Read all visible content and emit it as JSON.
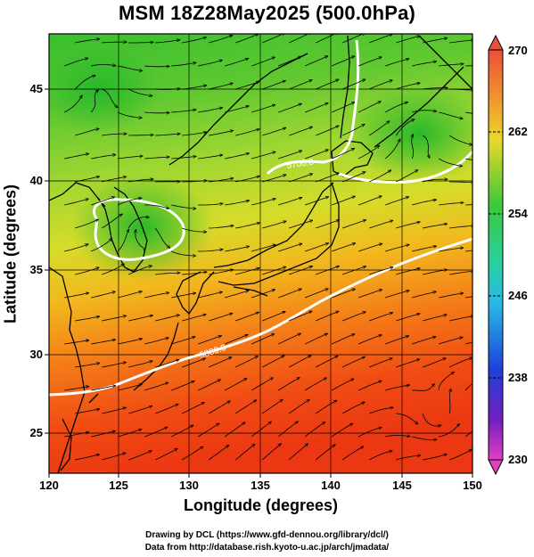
{
  "title": "MSM 18Z28May2025 (500.0hPa)",
  "x_axis": {
    "label": "Longitude (degrees)",
    "ticks": [
      "120",
      "125",
      "130",
      "135",
      "140",
      "145",
      "150"
    ]
  },
  "y_axis": {
    "label": "Latitude  (degrees)",
    "ticks": [
      "25",
      "30",
      "35",
      "40",
      "45"
    ]
  },
  "colorbar": {
    "ticks": [
      "270",
      "262",
      "254",
      "246",
      "238",
      "230"
    ],
    "min": 230,
    "max": 270
  },
  "contour_labels": [
    "5700.0",
    "5880.0"
  ],
  "footer": {
    "line1": "Drawing by DCL (https://www.gfd-dennou.org/library/dcl/)",
    "line2": "Data from http://database.rish.kyoto-u.ac.jp/arch/jmadata/"
  },
  "colors": {
    "warm": "#f03c14",
    "mid": "#f0c020",
    "cool": "#30c830"
  }
}
